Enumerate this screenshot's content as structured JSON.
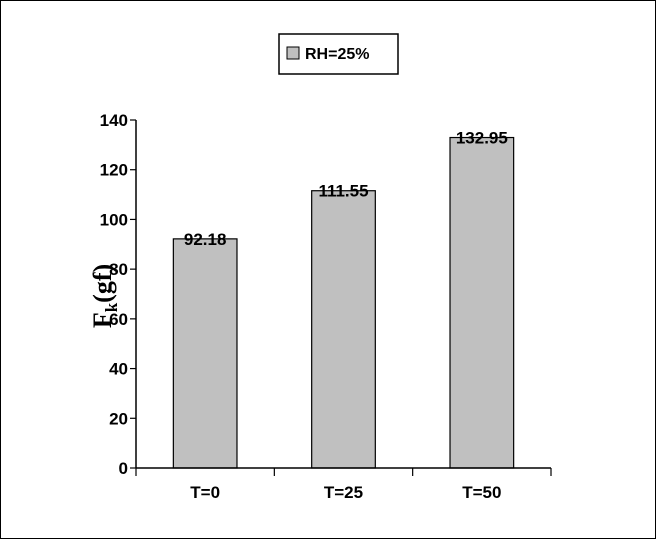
{
  "chart_data": {
    "type": "bar",
    "categories": [
      "T=0",
      "T=25",
      "T=50"
    ],
    "series": [
      {
        "name": "RH=25%",
        "values": [
          92.18,
          111.55,
          132.95
        ]
      }
    ],
    "data_labels": [
      "92.18",
      "111.55",
      "132.95"
    ],
    "ylabel": {
      "main": "F",
      "subscript": "k",
      "rest": "(gf)"
    },
    "ylim": [
      0,
      140
    ],
    "yticks": [
      0,
      20,
      40,
      60,
      80,
      100,
      120,
      140
    ],
    "grid": false,
    "legend_position": "top-center",
    "colors": {
      "bar_fill": "#c0c0c0",
      "bar_stroke": "#000000",
      "axis": "#000000"
    }
  }
}
